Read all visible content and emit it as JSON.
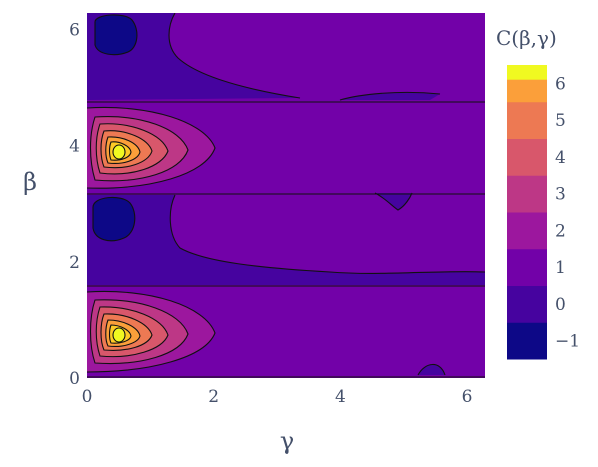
{
  "chart_data": {
    "type": "contour",
    "title": "",
    "xlabel": "γ",
    "ylabel": "β",
    "x_range": [
      0,
      6.283
    ],
    "y_range": [
      0,
      6.283
    ],
    "x_ticks": [
      0,
      2,
      4,
      6
    ],
    "y_ticks": [
      0,
      2,
      4,
      6
    ],
    "colorbar": {
      "title": "C(β,γ)",
      "ticks": [
        -1,
        0,
        1,
        2,
        3,
        4,
        5,
        6
      ],
      "range": [
        -1.5,
        6.5
      ],
      "levels": [
        -1.5,
        -0.5,
        0.5,
        1.5,
        2.5,
        3.5,
        4.5,
        5.5,
        6.5
      ],
      "colors": [
        "#0d0887",
        "#46039f",
        "#7201a8",
        "#9c179e",
        "#bd3786",
        "#d8576b",
        "#ed7953",
        "#fb9f3a",
        "#fdca26",
        "#f0f921"
      ]
    },
    "peaks": [
      {
        "gamma": 0.5,
        "beta": 0.75,
        "value": 5.9
      },
      {
        "gamma": 0.5,
        "beta": 3.9,
        "value": 5.9
      }
    ],
    "minima": [
      {
        "gamma": 0.4,
        "beta": 2.8,
        "value": -1.0
      },
      {
        "gamma": 0.4,
        "beta": 5.9,
        "value": -1.0
      }
    ]
  },
  "axes": {
    "x_title": "γ",
    "y_title": "β",
    "x_tick_labels": [
      "0",
      "2",
      "4",
      "6"
    ],
    "y_tick_labels": [
      "0",
      "2",
      "4",
      "6"
    ]
  },
  "colorbar_labels": {
    "title": "C(β,γ)",
    "tick_labels": [
      "6",
      "5",
      "4",
      "3",
      "2",
      "1",
      "0",
      "−1"
    ]
  }
}
